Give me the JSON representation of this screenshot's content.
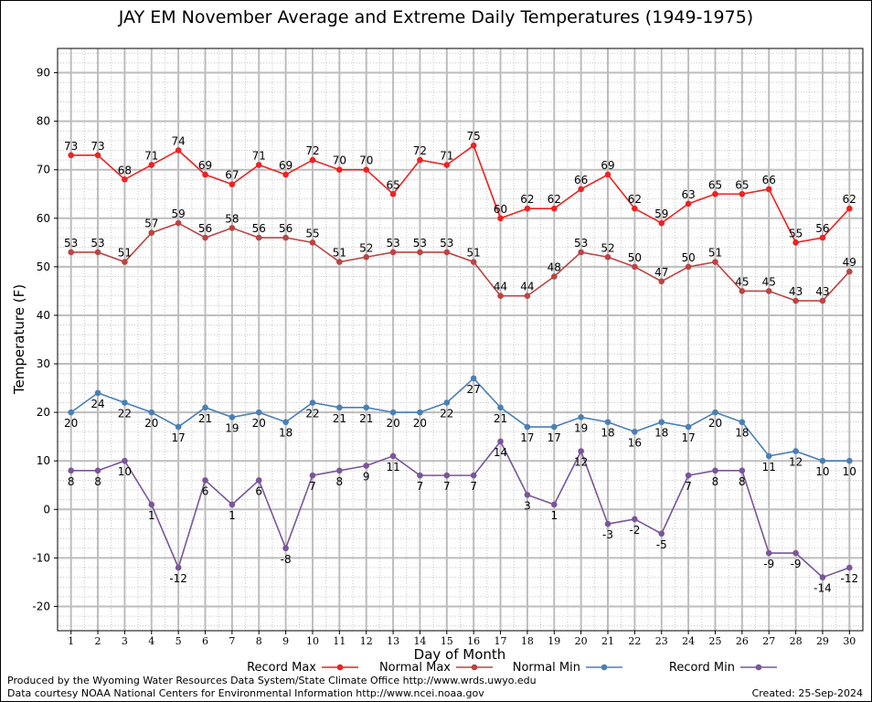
{
  "chart_data": {
    "type": "line",
    "title": "JAY EM November Average and Extreme Daily Temperatures (1949-1975)",
    "xlabel": "Day of Month",
    "ylabel": "Temperature (F)",
    "ylim": [
      -25,
      95
    ],
    "yticks": [
      -20,
      -10,
      0,
      10,
      20,
      30,
      40,
      50,
      60,
      70,
      80,
      90
    ],
    "xlim": [
      0.5,
      30.5
    ],
    "x": [
      1,
      2,
      3,
      4,
      5,
      6,
      7,
      8,
      9,
      10,
      11,
      12,
      13,
      14,
      15,
      16,
      17,
      18,
      19,
      20,
      21,
      22,
      23,
      24,
      25,
      26,
      27,
      28,
      29,
      30
    ],
    "grid": true,
    "legend_position": "bottom",
    "series": [
      {
        "name": "Record Max",
        "color": "#ee2222",
        "label_pos": "above",
        "values": [
          73,
          73,
          68,
          71,
          74,
          69,
          67,
          71,
          69,
          72,
          70,
          70,
          65,
          72,
          71,
          75,
          60,
          62,
          62,
          66,
          69,
          62,
          59,
          63,
          65,
          65,
          66,
          55,
          56,
          62
        ]
      },
      {
        "name": "Normal Max",
        "color": "#bb4444",
        "label_pos": "above",
        "values": [
          53,
          53,
          51,
          57,
          59,
          56,
          58,
          56,
          56,
          55,
          51,
          52,
          53,
          53,
          53,
          51,
          44,
          44,
          48,
          53,
          52,
          50,
          47,
          50,
          51,
          45,
          45,
          43,
          43,
          49
        ]
      },
      {
        "name": "Normal Min",
        "color": "#4a7fb5",
        "label_pos": "below",
        "values": [
          20,
          24,
          22,
          20,
          17,
          21,
          19,
          20,
          18,
          22,
          21,
          21,
          20,
          20,
          22,
          27,
          21,
          17,
          17,
          19,
          18,
          16,
          18,
          17,
          20,
          18,
          11,
          12,
          10,
          10
        ]
      },
      {
        "name": "Record Min",
        "color": "#7a559a",
        "label_pos": "below",
        "values": [
          8,
          8,
          10,
          1,
          -12,
          6,
          1,
          6,
          -8,
          7,
          8,
          9,
          11,
          7,
          7,
          7,
          14,
          3,
          1,
          12,
          -3,
          -2,
          -5,
          7,
          8,
          8,
          -9,
          -9,
          -14,
          -12
        ]
      }
    ]
  },
  "footer": {
    "line1": "Produced by the Wyoming Water Resources Data System/State Climate Office http://www.wrds.uwyo.edu",
    "line2": "Data courtesy NOAA National Centers for Environmental Information http://www.ncei.noaa.gov",
    "created": "Created:  25-Sep-2024"
  }
}
